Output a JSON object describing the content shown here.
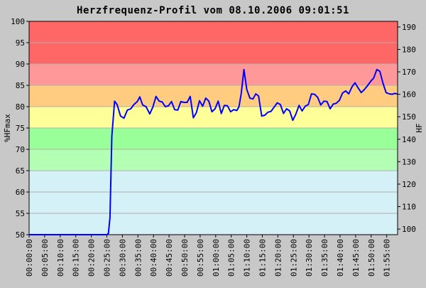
{
  "chart_data": {
    "type": "line",
    "title": "Herzfrequenz-Profil vom 08.10.2006 09:01:51",
    "ylabel_left": "%HFmax",
    "ylabel_right": "HF",
    "xlabel": "",
    "ylim_left": [
      50,
      100
    ],
    "ylim_right": [
      97.5,
      192.5
    ],
    "yticks_left": [
      "50",
      "55",
      "60",
      "65",
      "70",
      "75",
      "80",
      "85",
      "90",
      "95",
      "100"
    ],
    "yticks_right": [
      "100",
      "110",
      "120",
      "130",
      "140",
      "150",
      "160",
      "170",
      "180",
      "190"
    ],
    "xticks": [
      "00:00:00",
      "00:05:00",
      "00:10:00",
      "00:15:00",
      "00:20:00",
      "00:25:00",
      "00:30:00",
      "00:35:00",
      "00:40:00",
      "00:45:00",
      "00:50:00",
      "00:55:00",
      "01:00:00",
      "01:05:00",
      "01:10:00",
      "01:15:00",
      "01:20:00",
      "01:25:00",
      "01:30:00",
      "01:35:00",
      "01:40:00",
      "01:45:00",
      "01:50:00",
      "01:55:00"
    ],
    "xlim_minutes": [
      0,
      118.5
    ],
    "grid": true,
    "zones": [
      {
        "from": 90,
        "to": 100,
        "color": "#ff6666"
      },
      {
        "from": 85,
        "to": 90,
        "color": "#ff9999"
      },
      {
        "from": 80,
        "to": 85,
        "color": "#ffcc80"
      },
      {
        "from": 75,
        "to": 80,
        "color": "#ffff99"
      },
      {
        "from": 70,
        "to": 75,
        "color": "#99ff99"
      },
      {
        "from": 65,
        "to": 70,
        "color": "#b3ffb3"
      },
      {
        "from": 50,
        "to": 65,
        "color": "#d3f1f7"
      }
    ],
    "line_color": "#0000ff",
    "series": [
      {
        "x_minutes": [
          0,
          5,
          10,
          15,
          20,
          25,
          25.5,
          26,
          26.6,
          27.5,
          28.3,
          29.4,
          30.5,
          31.6,
          32.7,
          33.7,
          34.8,
          35.6,
          36.5,
          37.6,
          38.8,
          39.8,
          40.8,
          41.8,
          42.8,
          43.8,
          44.8,
          45.8,
          46.8,
          47.8,
          48.8,
          49.8,
          50.8,
          51.8,
          52.8,
          53.8,
          54.8,
          55.8,
          56.8,
          57.8,
          58.8,
          59.8,
          60.8,
          61.8,
          62.8,
          63.8,
          64.8,
          65.8,
          66.8,
          67.5,
          68.2,
          69.1,
          70.0,
          71.0,
          72.0,
          72.9,
          73.8,
          74.8,
          75.8,
          76.8,
          77.8,
          78.8,
          79.8,
          80.8,
          81.8,
          82.8,
          83.8,
          84.8,
          85.8,
          86.8,
          87.8,
          88.8,
          89.8,
          90.8,
          91.8,
          92.8,
          93.8,
          94.8,
          95.8,
          96.8,
          97.8,
          98.8,
          99.8,
          100.8,
          101.8,
          102.8,
          103.8,
          104.8,
          105.8,
          106.8,
          107.8,
          108.8,
          109.8,
          110.8,
          111.8,
          112.8,
          113.8,
          114.8,
          115.8,
          116.8,
          117.5,
          118.4
        ],
        "y_percent": [
          50,
          50,
          50,
          50,
          50,
          50,
          50.3,
          54,
          73,
          81.3,
          80.5,
          77.8,
          77.3,
          79.2,
          79.5,
          80.5,
          81.2,
          82.3,
          80.4,
          80.0,
          78.3,
          79.9,
          82.4,
          81.3,
          81.1,
          80.0,
          80.2,
          81.2,
          79.3,
          79.2,
          81.2,
          81.0,
          81.0,
          82.4,
          77.4,
          78.6,
          81.4,
          80.1,
          82.0,
          81.3,
          78.8,
          79.5,
          81.3,
          78.4,
          80.3,
          80.2,
          78.8,
          79.3,
          79.1,
          80.0,
          83.0,
          88.7,
          84.0,
          82.0,
          81.8,
          83.0,
          82.5,
          77.8,
          78.0,
          78.7,
          78.9,
          79.9,
          80.9,
          80.5,
          78.4,
          79.5,
          79.0,
          76.8,
          78.3,
          80.3,
          79.0,
          80.1,
          80.5,
          83.0,
          82.9,
          82.2,
          80.4,
          81.3,
          81.2,
          79.5,
          80.6,
          80.8,
          81.5,
          83.2,
          83.7,
          83.0,
          84.6,
          85.6,
          84.4,
          83.3,
          84.0,
          84.9,
          85.9,
          86.7,
          88.7,
          88.3,
          85.5,
          83.3,
          83.0,
          82.9,
          83.1,
          83.0
        ]
      }
    ]
  }
}
